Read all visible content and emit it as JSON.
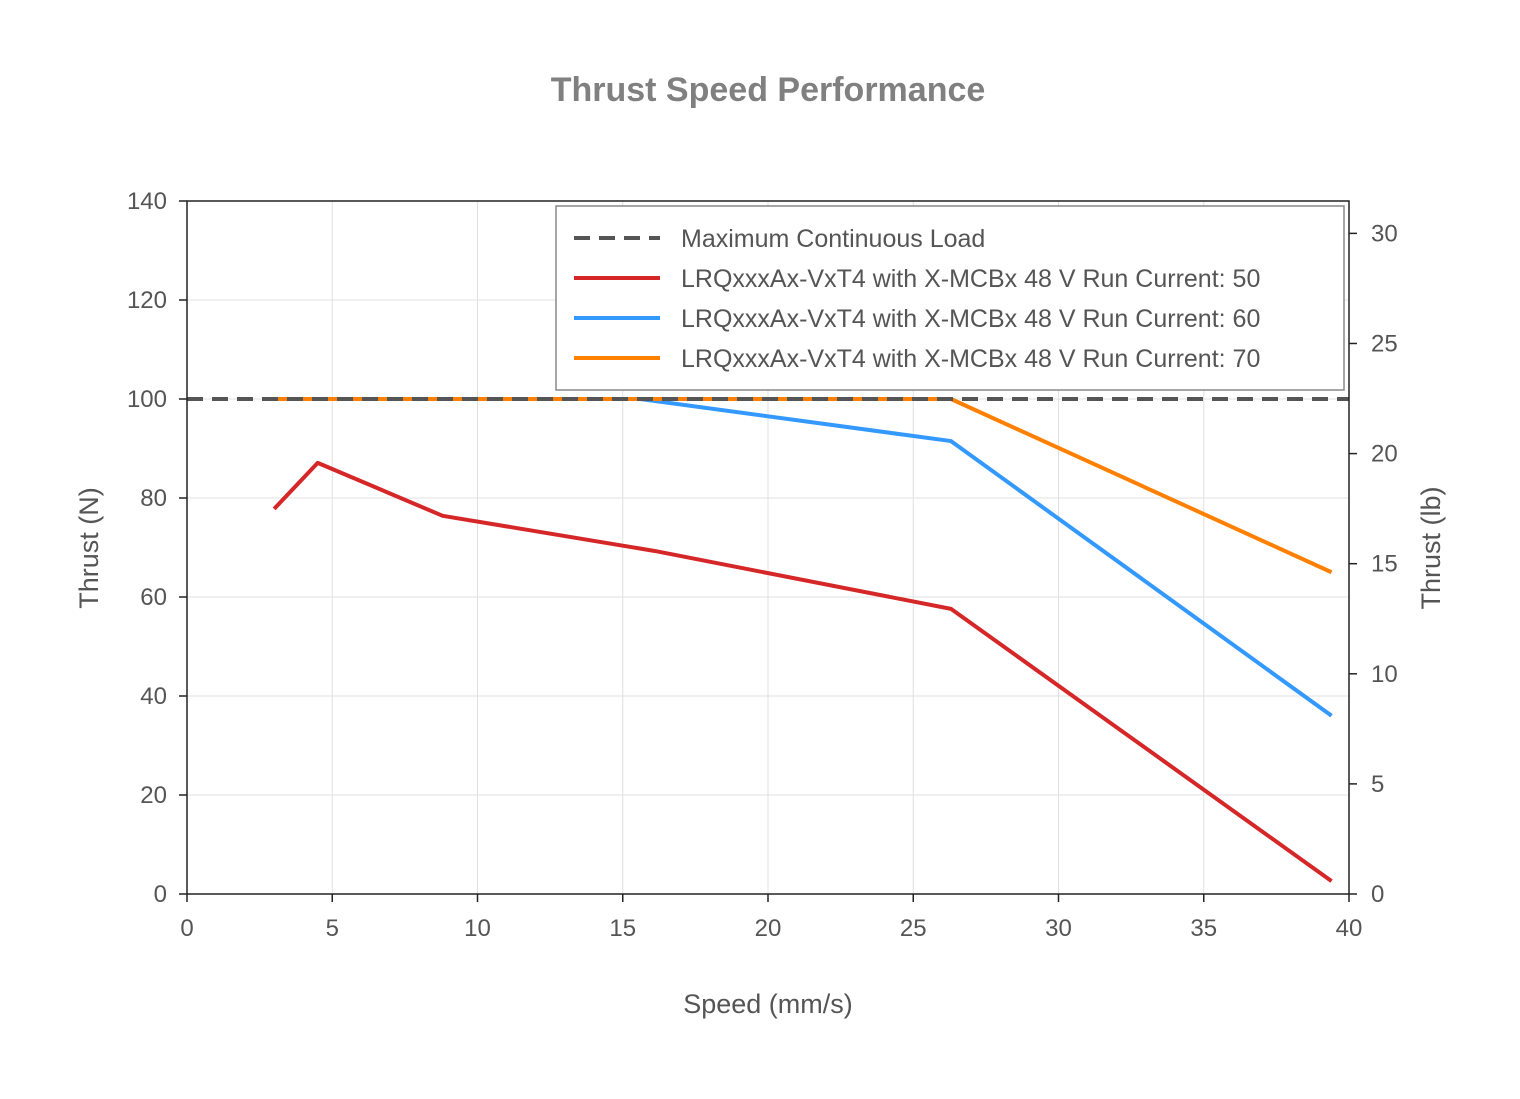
{
  "chart_data": {
    "type": "line",
    "title": "Thrust Speed Performance",
    "xlabel": "Speed (mm/s)",
    "ylabel": "Thrust (N)",
    "y2label": "Thrust (lb)",
    "xlim": [
      0,
      40
    ],
    "ylim": [
      0,
      140
    ],
    "y2lim": [
      0,
      31.47
    ],
    "xticks": [
      0,
      5,
      10,
      15,
      20,
      25,
      30,
      35,
      40
    ],
    "yticks": [
      0,
      20,
      40,
      60,
      80,
      100,
      120,
      140
    ],
    "y2ticks": [
      0,
      5,
      10,
      15,
      20,
      25,
      30
    ],
    "grid": true,
    "legend_position": "top-right",
    "series": [
      {
        "name": "Maximum Continuous Load",
        "color": "#555555",
        "dash": true,
        "x": [
          0,
          40
        ],
        "y": [
          100,
          100
        ]
      },
      {
        "name": "LRQxxxAx-VxT4 with X-MCBx 48 V Run Current: 50",
        "color": "#d62728",
        "x": [
          3.0,
          4.5,
          8.8,
          16.1,
          26.3,
          39.4
        ],
        "y": [
          77.8,
          87.1,
          76.4,
          69.3,
          57.6,
          2.6
        ]
      },
      {
        "name": "LRQxxxAx-VxT4 with X-MCBx 48 V Run Current: 60",
        "color": "#3399ff",
        "x": [
          3.0,
          15.6,
          26.3,
          39.4
        ],
        "y": [
          100,
          100,
          91.5,
          36.0
        ]
      },
      {
        "name": "LRQxxxAx-VxT4 with X-MCBx 48 V Run Current: 70",
        "color": "#ff8000",
        "x": [
          3.0,
          26.3,
          39.4
        ],
        "y": [
          100,
          100,
          65.0
        ]
      }
    ]
  }
}
